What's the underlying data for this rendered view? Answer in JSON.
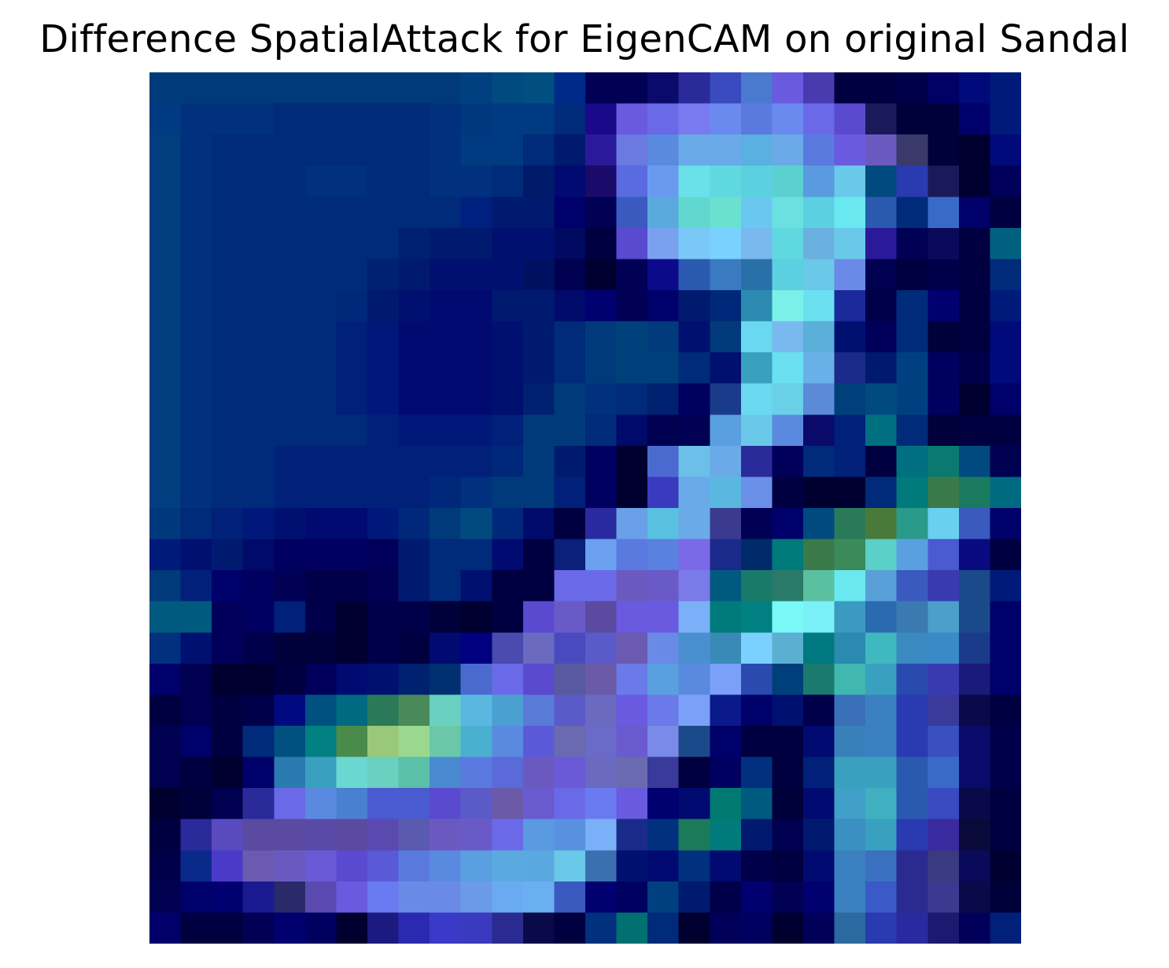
{
  "chart_data": {
    "type": "heatmap",
    "title": "Difference SpatialAttack for EigenCAM on original Sandal",
    "xlabel": "",
    "ylabel": "",
    "axes_visible": false,
    "rows": 28,
    "cols": 28,
    "colors": [
      [
        "#003a7a",
        "#003a7a",
        "#003a7a",
        "#003a7a",
        "#003a7a",
        "#003a7a",
        "#003a7a",
        "#003a7a",
        "#003a7a",
        "#003a7a",
        "#004080",
        "#004a80",
        "#004f80",
        "#002a8a",
        "#000055",
        "#000055",
        "#0a0a6a",
        "#2a2a9a",
        "#3a4abf",
        "#4a7acf",
        "#6a5ae0",
        "#4a3ab0",
        "#000040",
        "#000040",
        "#00004a",
        "#000066",
        "#000a7a",
        "#001a7a"
      ],
      [
        "#003a80",
        "#00307e",
        "#00307e",
        "#00307e",
        "#002a7a",
        "#002a7a",
        "#002a7a",
        "#002a7a",
        "#002a7a",
        "#00307e",
        "#00387e",
        "#003a80",
        "#003a80",
        "#002a7a",
        "#1a0a8a",
        "#6a5ae0",
        "#6a6ae8",
        "#7a7af0",
        "#6a8af0",
        "#5a7ae0",
        "#6a8af0",
        "#6a6ae8",
        "#5a4acf",
        "#1a1a5a",
        "#00003a",
        "#00003a",
        "#00006a",
        "#001a7a"
      ],
      [
        "#003e80",
        "#00307e",
        "#002a7a",
        "#002a7a",
        "#002a7a",
        "#002a7a",
        "#002a7a",
        "#002a7a",
        "#002a7a",
        "#00307e",
        "#003a80",
        "#003a80",
        "#002a7a",
        "#001a70",
        "#2a1a9a",
        "#6a7ae0",
        "#5a8ae0",
        "#6aaae8",
        "#6aaae8",
        "#5ab0e0",
        "#6aaae8",
        "#5a7ae0",
        "#6a5ae0",
        "#6a5abf",
        "#3a3a6a",
        "#00003a",
        "#000030",
        "#000a7a"
      ],
      [
        "#003e80",
        "#00307e",
        "#002a7a",
        "#002a7a",
        "#002a7a",
        "#00307e",
        "#00307e",
        "#002a7a",
        "#002a7a",
        "#00307e",
        "#00307e",
        "#002a7a",
        "#001a6a",
        "#000a70",
        "#1a0a6a",
        "#5a6ae0",
        "#6a9aef",
        "#6ae0e8",
        "#60d8e0",
        "#5ad0e0",
        "#5ad0d0",
        "#5a9ae0",
        "#6ac8e8",
        "#004a80",
        "#2a3aaf",
        "#1a1a5a",
        "#000030",
        "#00005a"
      ],
      [
        "#003e80",
        "#00307e",
        "#002a7a",
        "#002a7a",
        "#002a7a",
        "#002a7a",
        "#002a7a",
        "#002a7a",
        "#002a7a",
        "#002a7a",
        "#002080",
        "#001a70",
        "#001a70",
        "#00006a",
        "#000055",
        "#3a5abf",
        "#5aaade",
        "#60d8d0",
        "#6ae0d0",
        "#6ac8f0",
        "#6ae0e0",
        "#5ad0e0",
        "#6ae8f0",
        "#2a5aaf",
        "#002a7a",
        "#3a6ac8",
        "#00006a",
        "#000040"
      ],
      [
        "#003e80",
        "#00307e",
        "#002a7a",
        "#002a7a",
        "#002a7a",
        "#002a7a",
        "#002a7a",
        "#002a7a",
        "#002070",
        "#001a70",
        "#001a70",
        "#001070",
        "#001070",
        "#000a60",
        "#000040",
        "#5a4acf",
        "#7aa0f0",
        "#7ac8f8",
        "#7ad0ff",
        "#7ab8f0",
        "#60d8e0",
        "#6ab0e0",
        "#6ac8e8",
        "#2a1a9a",
        "#000055",
        "#0a0a5a",
        "#000040",
        "#006080"
      ],
      [
        "#003e80",
        "#00307e",
        "#002a7a",
        "#002a7a",
        "#002a7a",
        "#002a7a",
        "#002a7a",
        "#002070",
        "#001a70",
        "#001070",
        "#001070",
        "#001070",
        "#001060",
        "#000050",
        "#000030",
        "#000055",
        "#0a0a8a",
        "#2a5aaf",
        "#3a7ac0",
        "#2a70a8",
        "#5ad0e0",
        "#6ac8e8",
        "#6a8ae8",
        "#000050",
        "#000040",
        "#00004a",
        "#000040",
        "#002a7a"
      ],
      [
        "#003e80",
        "#00307e",
        "#002a7a",
        "#002a7a",
        "#002a7a",
        "#002a7a",
        "#00287a",
        "#001a70",
        "#001070",
        "#000a70",
        "#000a70",
        "#001a70",
        "#001a70",
        "#000a6a",
        "#000070",
        "#000055",
        "#00006a",
        "#001a70",
        "#00287a",
        "#2a8ab0",
        "#7af0e8",
        "#6ae0f0",
        "#1a2a9a",
        "#00004a",
        "#002a7a",
        "#000070",
        "#000040",
        "#001a7a"
      ],
      [
        "#003e80",
        "#00307e",
        "#002a7a",
        "#002a7a",
        "#002a7a",
        "#002a7a",
        "#00207a",
        "#00187a",
        "#000a70",
        "#000a70",
        "#000a70",
        "#001070",
        "#001a70",
        "#002a7a",
        "#003a7a",
        "#00407a",
        "#003a7a",
        "#001070",
        "#003a7a",
        "#6ad8f0",
        "#7ab8f0",
        "#5ab0d8",
        "#001070",
        "#00005a",
        "#002a7a",
        "#00003a",
        "#000040",
        "#000a7a"
      ],
      [
        "#003e80",
        "#00307e",
        "#002a7a",
        "#002a7a",
        "#002a7a",
        "#002a7a",
        "#00207a",
        "#00187a",
        "#000a70",
        "#000a70",
        "#000a70",
        "#001070",
        "#001a70",
        "#002a7a",
        "#003a7a",
        "#00407a",
        "#00407a",
        "#002a7a",
        "#001070",
        "#3aa0c0",
        "#6ae0f0",
        "#6ab0e8",
        "#1a2a8a",
        "#001a70",
        "#004080",
        "#000060",
        "#00004a",
        "#000a7a"
      ],
      [
        "#003e80",
        "#00307e",
        "#002a7a",
        "#002a7a",
        "#002a7a",
        "#002a7a",
        "#00207a",
        "#00187a",
        "#000a70",
        "#000a70",
        "#000a70",
        "#001070",
        "#002070",
        "#003a7a",
        "#00307e",
        "#002a7a",
        "#002070",
        "#000060",
        "#1a3a8a",
        "#6ad8f0",
        "#6ad0e8",
        "#5a8ad8",
        "#00407a",
        "#004a80",
        "#004080",
        "#000060",
        "#000030",
        "#00006a"
      ],
      [
        "#003e80",
        "#00307e",
        "#002a7a",
        "#002a7a",
        "#002a7a",
        "#002a7a",
        "#002a7a",
        "#00207a",
        "#00187a",
        "#00187a",
        "#00187a",
        "#00207a",
        "#003a7a",
        "#003a7a",
        "#002a7a",
        "#000a6a",
        "#000050",
        "#000055",
        "#5aa0e0",
        "#6ac8e8",
        "#5a8ae0",
        "#0a0a6a",
        "#00207a",
        "#007080",
        "#002a7a",
        "#00003a",
        "#000040",
        "#000040"
      ],
      [
        "#003e80",
        "#00307e",
        "#002a7a",
        "#002a7a",
        "#00207a",
        "#00207a",
        "#00207a",
        "#00207a",
        "#00207a",
        "#00207a",
        "#00207a",
        "#00287a",
        "#003a7a",
        "#001a70",
        "#000060",
        "#000030",
        "#4a6ad0",
        "#6ac0e8",
        "#6aaae8",
        "#2a2a9a",
        "#00005a",
        "#002a7a",
        "#00207a",
        "#000040",
        "#007080",
        "#0a7a70",
        "#004a80",
        "#000050"
      ],
      [
        "#003e80",
        "#00307e",
        "#002a7a",
        "#002a7a",
        "#00207a",
        "#00207a",
        "#00207a",
        "#00207a",
        "#00207a",
        "#00287a",
        "#00307e",
        "#003a7a",
        "#003a7a",
        "#00207a",
        "#000060",
        "#000030",
        "#3a3abf",
        "#6aaae8",
        "#5ab8e0",
        "#6a90e8",
        "#000040",
        "#000030",
        "#000030",
        "#002a7a",
        "#007a7a",
        "#3a7a4a",
        "#1a7a60",
        "#006a80"
      ],
      [
        "#00387e",
        "#002a7a",
        "#00207a",
        "#00187a",
        "#001070",
        "#000a70",
        "#000a70",
        "#00187a",
        "#00287a",
        "#003a7a",
        "#004a80",
        "#00287a",
        "#000a6a",
        "#000040",
        "#2a2aa0",
        "#6aa0e8",
        "#5ac0e0",
        "#6aaae8",
        "#3a3a90",
        "#000055",
        "#00006a",
        "#004a80",
        "#2a7a5a",
        "#4a7a3a",
        "#2a9a8a",
        "#6ad0f0",
        "#3a5abf",
        "#00006a"
      ],
      [
        "#001a7a",
        "#001070",
        "#001a70",
        "#000a6a",
        "#000060",
        "#000060",
        "#000060",
        "#00005a",
        "#001a70",
        "#002a7a",
        "#002a7a",
        "#000a70",
        "#000040",
        "#0a207a",
        "#6aa0ef",
        "#5a7ae0",
        "#5a80e0",
        "#7a6ae8",
        "#1a2a8a",
        "#002a6a",
        "#007a7a",
        "#3a7a4a",
        "#3a8a5a",
        "#5ad0c8",
        "#5aa0e0",
        "#4a5ad0",
        "#0a0a80",
        "#000040"
      ],
      [
        "#003a7a",
        "#00207a",
        "#00006a",
        "#000060",
        "#000055",
        "#00004a",
        "#00004a",
        "#000055",
        "#001a70",
        "#002a7a",
        "#001070",
        "#000040",
        "#000040",
        "#6a6ae8",
        "#6a6ae8",
        "#6a5ac0",
        "#6a5ac8",
        "#7a7ae8",
        "#005a80",
        "#1a7a6a",
        "#2a7a6a",
        "#5ac0a0",
        "#6ae8f0",
        "#5aa0d8",
        "#3a5abf",
        "#3a3ab0",
        "#1a4a8a",
        "#001a7a"
      ],
      [
        "#005a80",
        "#005a80",
        "#00005a",
        "#000060",
        "#00207a",
        "#00004a",
        "#000030",
        "#00004a",
        "#00004a",
        "#00003a",
        "#000030",
        "#000040",
        "#5a4acf",
        "#6a5ac8",
        "#5a4aa0",
        "#6a5ae0",
        "#6a5ae0",
        "#7ab0f8",
        "#007a7a",
        "#008080",
        "#7af8f8",
        "#7af0f8",
        "#3a9ac0",
        "#2a6aaf",
        "#3a7ab0",
        "#4aa0c8",
        "#1a4a8a",
        "#00006a"
      ],
      [
        "#00307e",
        "#001070",
        "#00005a",
        "#00004a",
        "#00003a",
        "#00003a",
        "#000030",
        "#00004a",
        "#000040",
        "#000a70",
        "#000080",
        "#4a4aaf",
        "#6a6ac0",
        "#4a4abf",
        "#5a5ac8",
        "#6a5ab0",
        "#6a8ae8",
        "#4a90d0",
        "#3a8ab8",
        "#7ad0ff",
        "#5ab0d0",
        "#007a80",
        "#2a8aaf",
        "#40b8c0",
        "#3a8ac0",
        "#3a8ac8",
        "#1a3a8a",
        "#00006a"
      ],
      [
        "#00006a",
        "#000050",
        "#000030",
        "#000030",
        "#000040",
        "#00005a",
        "#000a70",
        "#001070",
        "#002070",
        "#003070",
        "#4a6ad0",
        "#6a6ae8",
        "#5a4acf",
        "#5a5aa0",
        "#6a5aa8",
        "#6a7ae8",
        "#5aa0e0",
        "#5a8ae0",
        "#7aa0f8",
        "#2a4aaf",
        "#00407a",
        "#1a7a70",
        "#40b8b0",
        "#3aa0c0",
        "#2a4aaf",
        "#3a3ab0",
        "#1a1a7a",
        "#00006a"
      ],
      [
        "#000040",
        "#000050",
        "#000040",
        "#00004a",
        "#000a80",
        "#005080",
        "#006a80",
        "#2a7a5a",
        "#4a8a5a",
        "#6ad0c0",
        "#5ab8e0",
        "#4aa0d0",
        "#5a7ad8",
        "#5a5ac8",
        "#6a6ac0",
        "#6a5ae0",
        "#6a7ae8",
        "#7aa0f8",
        "#0a1a8a",
        "#00006a",
        "#001070",
        "#00004a",
        "#3a70b8",
        "#3a80c0",
        "#2a3ab0",
        "#3a3a9a",
        "#0a0a4a",
        "#000040"
      ],
      [
        "#000050",
        "#00006a",
        "#000040",
        "#002a7a",
        "#005080",
        "#008080",
        "#4a8a4a",
        "#9ac87a",
        "#9ad890",
        "#6ac8a8",
        "#4ab0d0",
        "#5a8ae0",
        "#5a5ad8",
        "#6a6ab0",
        "#6a6ac8",
        "#6a5ad0",
        "#7a8ae8",
        "#1a4a8a",
        "#00006a",
        "#000040",
        "#000040",
        "#000a70",
        "#3a80b8",
        "#3a80c0",
        "#2a3ab0",
        "#3a50c0",
        "#0a0a6a",
        "#00004a"
      ],
      [
        "#000050",
        "#000040",
        "#000030",
        "#00006a",
        "#2a7aaf",
        "#3aa0c0",
        "#6ad8d0",
        "#6ad0c0",
        "#5ac0a8",
        "#4a8ad0",
        "#5a7ae0",
        "#5a6ad8",
        "#6a5ac0",
        "#6a5ad8",
        "#6a6ac0",
        "#6a6ab0",
        "#3a3a9a",
        "#000040",
        "#000060",
        "#00307e",
        "#000040",
        "#00207a",
        "#3aa0c0",
        "#3aa0c0",
        "#2a5ab0",
        "#3a6ac8",
        "#0a0a6a",
        "#00004a"
      ],
      [
        "#000030",
        "#00003a",
        "#000050",
        "#2a2a9a",
        "#6a6ae8",
        "#5a8ae0",
        "#4a80d0",
        "#4a5ad0",
        "#4a5ad0",
        "#5a4ad0",
        "#5a5ac8",
        "#6a5aa8",
        "#6a5ad0",
        "#6a6ae8",
        "#6a7af0",
        "#6a5ae0",
        "#000070",
        "#000a70",
        "#007a70",
        "#005a80",
        "#00003a",
        "#000a70",
        "#40a0c8",
        "#40b0c0",
        "#2a5ab0",
        "#3a4ac0",
        "#0a0a4a",
        "#000040"
      ],
      [
        "#000040",
        "#2a2a9a",
        "#5a4abf",
        "#5a4aa0",
        "#5a4aa0",
        "#5a4aa8",
        "#5a4aa0",
        "#5a4ab0",
        "#5a5ab0",
        "#6a5ac0",
        "#6a5ac8",
        "#6a6ae8",
        "#5a9ae0",
        "#5a90e0",
        "#7ab0f8",
        "#1a2a8a",
        "#00307e",
        "#1a7a5a",
        "#007a7a",
        "#001a70",
        "#000050",
        "#001a70",
        "#3a90c0",
        "#3aa0c0",
        "#2a3ab0",
        "#3a2aa0",
        "#0a0a3a",
        "#000040"
      ],
      [
        "#00004a",
        "#0a2a8a",
        "#4a3ac8",
        "#6a5ab0",
        "#6a5ac0",
        "#6a5ad8",
        "#5a4ad0",
        "#5a5ad8",
        "#5a7ae0",
        "#5a8ae0",
        "#5aa0e0",
        "#5aaae0",
        "#5aa8e0",
        "#6ac8e8",
        "#3a70b0",
        "#001070",
        "#000a70",
        "#00307e",
        "#000a70",
        "#00004a",
        "#000040",
        "#000a70",
        "#3a80c0",
        "#3a70c0",
        "#2a2a90",
        "#3a3a80",
        "#0a0a5a",
        "#000030"
      ],
      [
        "#000050",
        "#00006a",
        "#000070",
        "#1a1a90",
        "#2a2a6a",
        "#5a4ab0",
        "#6a5ae0",
        "#6a7af0",
        "#6a8ae8",
        "#6a8ae8",
        "#6a9ae8",
        "#6aaaf0",
        "#6ab0f0",
        "#3a5abf",
        "#000070",
        "#000060",
        "#004080",
        "#001a70",
        "#00004a",
        "#000070",
        "#000055",
        "#000070",
        "#3a80c0",
        "#3a5ac8",
        "#2a2a90",
        "#3a3a90",
        "#0a0a4a",
        "#00003a"
      ],
      [
        "#00006a",
        "#000040",
        "#000040",
        "#000055",
        "#000070",
        "#000060",
        "#000030",
        "#1a1a80",
        "#2a2ab0",
        "#3a3ac8",
        "#3a3ac0",
        "#2a2a90",
        "#0a0a4a",
        "#000040",
        "#00307e",
        "#007070",
        "#002a7a",
        "#000030",
        "#00005a",
        "#000060",
        "#000030",
        "#00005a",
        "#2a6aa0",
        "#2a3ab0",
        "#2a2aa0",
        "#1a1a70",
        "#00005a",
        "#00207a"
      ]
    ]
  }
}
